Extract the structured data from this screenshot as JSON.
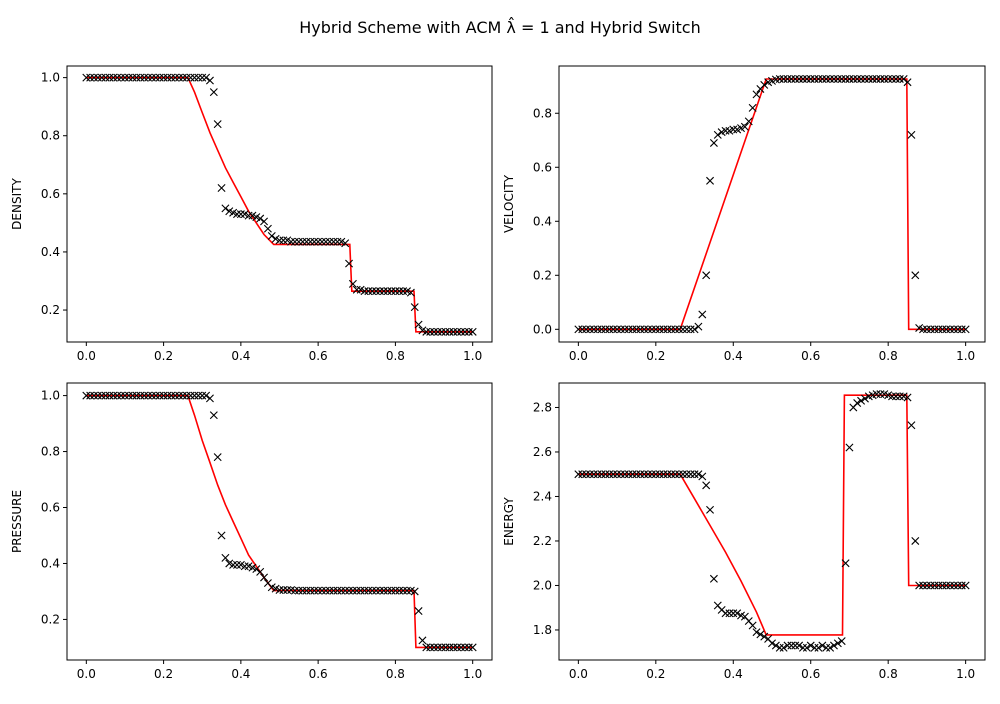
{
  "figure": {
    "title": "Hybrid Scheme with ACM λ̂ = 1 and Hybrid Switch"
  },
  "chart_data": [
    {
      "type": "line",
      "title": "",
      "xlabel": "",
      "ylabel": "DENSITY",
      "xlim": [
        -0.05,
        1.05
      ],
      "ylim": [
        0.09,
        1.04
      ],
      "xticks": [
        "0.0",
        "0.2",
        "0.4",
        "0.6",
        "0.8",
        "1.0"
      ],
      "yticks": [
        "0.2",
        "0.4",
        "0.6",
        "0.8",
        "1.0"
      ],
      "grid": false,
      "exact": {
        "name": "",
        "color": "#ff0000",
        "x": [
          0,
          0.263,
          0.28,
          0.3,
          0.32,
          0.34,
          0.36,
          0.38,
          0.4,
          0.42,
          0.44,
          0.46,
          0.485,
          0.55,
          0.6,
          0.65,
          0.682,
          0.687,
          0.75,
          0.8,
          0.848,
          0.853,
          0.9,
          1.0
        ],
        "y": [
          1.0,
          1.0,
          0.95,
          0.88,
          0.81,
          0.75,
          0.69,
          0.64,
          0.59,
          0.54,
          0.5,
          0.46,
          0.426,
          0.426,
          0.426,
          0.426,
          0.426,
          0.265,
          0.265,
          0.265,
          0.265,
          0.125,
          0.125,
          0.125
        ]
      },
      "numerical": {
        "name": "",
        "color": "#000000",
        "marker": "x",
        "x": [
          0.0,
          0.01,
          0.02,
          0.03,
          0.04,
          0.05,
          0.06,
          0.07,
          0.08,
          0.09,
          0.1,
          0.11,
          0.12,
          0.13,
          0.14,
          0.15,
          0.16,
          0.17,
          0.18,
          0.19,
          0.2,
          0.21,
          0.22,
          0.23,
          0.24,
          0.25,
          0.26,
          0.27,
          0.28,
          0.29,
          0.3,
          0.31,
          0.32,
          0.33,
          0.34,
          0.35,
          0.36,
          0.37,
          0.38,
          0.39,
          0.4,
          0.41,
          0.42,
          0.43,
          0.44,
          0.45,
          0.46,
          0.47,
          0.48,
          0.49,
          0.5,
          0.51,
          0.52,
          0.53,
          0.54,
          0.55,
          0.56,
          0.57,
          0.58,
          0.59,
          0.6,
          0.61,
          0.62,
          0.63,
          0.64,
          0.65,
          0.66,
          0.67,
          0.68,
          0.69,
          0.7,
          0.71,
          0.72,
          0.73,
          0.74,
          0.75,
          0.76,
          0.77,
          0.78,
          0.79,
          0.8,
          0.81,
          0.82,
          0.83,
          0.84,
          0.85,
          0.86,
          0.87,
          0.88,
          0.89,
          0.9,
          0.91,
          0.92,
          0.93,
          0.94,
          0.95,
          0.96,
          0.97,
          0.98,
          0.99,
          1.0
        ],
        "y": [
          1.0,
          1.0,
          1.0,
          1.0,
          1.0,
          1.0,
          1.0,
          1.0,
          1.0,
          1.0,
          1.0,
          1.0,
          1.0,
          1.0,
          1.0,
          1.0,
          1.0,
          1.0,
          1.0,
          1.0,
          1.0,
          1.0,
          1.0,
          1.0,
          1.0,
          1.0,
          1.0,
          1.0,
          1.0,
          1.0,
          1.0,
          1.0,
          0.99,
          0.95,
          0.84,
          0.62,
          0.55,
          0.54,
          0.535,
          0.53,
          0.53,
          0.53,
          0.525,
          0.525,
          0.52,
          0.515,
          0.505,
          0.48,
          0.455,
          0.445,
          0.44,
          0.44,
          0.44,
          0.435,
          0.435,
          0.435,
          0.435,
          0.435,
          0.435,
          0.435,
          0.435,
          0.435,
          0.435,
          0.435,
          0.435,
          0.435,
          0.435,
          0.43,
          0.36,
          0.29,
          0.27,
          0.27,
          0.265,
          0.265,
          0.265,
          0.265,
          0.265,
          0.265,
          0.265,
          0.265,
          0.265,
          0.265,
          0.265,
          0.265,
          0.26,
          0.21,
          0.15,
          0.13,
          0.125,
          0.125,
          0.125,
          0.125,
          0.125,
          0.125,
          0.125,
          0.125,
          0.125,
          0.125,
          0.125,
          0.125,
          0.125
        ]
      }
    },
    {
      "type": "line",
      "title": "",
      "xlabel": "",
      "ylabel": "VELOCITY",
      "xlim": [
        -0.05,
        1.05
      ],
      "ylim": [
        -0.047,
        0.975
      ],
      "xticks": [
        "0.0",
        "0.2",
        "0.4",
        "0.6",
        "0.8",
        "1.0"
      ],
      "yticks": [
        "0.0",
        "0.2",
        "0.4",
        "0.6",
        "0.8"
      ],
      "grid": false,
      "exact": {
        "name": "",
        "color": "#ff0000",
        "x": [
          0,
          0.263,
          0.485,
          0.5,
          0.848,
          0.853,
          0.9,
          1.0
        ],
        "y": [
          0,
          0,
          0.927,
          0.927,
          0.927,
          0,
          0,
          0
        ]
      },
      "numerical": {
        "name": "",
        "color": "#000000",
        "marker": "x",
        "x": [
          0.0,
          0.01,
          0.02,
          0.03,
          0.04,
          0.05,
          0.06,
          0.07,
          0.08,
          0.09,
          0.1,
          0.11,
          0.12,
          0.13,
          0.14,
          0.15,
          0.16,
          0.17,
          0.18,
          0.19,
          0.2,
          0.21,
          0.22,
          0.23,
          0.24,
          0.25,
          0.26,
          0.27,
          0.28,
          0.29,
          0.3,
          0.31,
          0.32,
          0.33,
          0.34,
          0.35,
          0.36,
          0.37,
          0.38,
          0.39,
          0.4,
          0.41,
          0.42,
          0.43,
          0.44,
          0.45,
          0.46,
          0.47,
          0.48,
          0.49,
          0.5,
          0.51,
          0.52,
          0.53,
          0.54,
          0.55,
          0.56,
          0.57,
          0.58,
          0.59,
          0.6,
          0.61,
          0.62,
          0.63,
          0.64,
          0.65,
          0.66,
          0.67,
          0.68,
          0.69,
          0.7,
          0.71,
          0.72,
          0.73,
          0.74,
          0.75,
          0.76,
          0.77,
          0.78,
          0.79,
          0.8,
          0.81,
          0.82,
          0.83,
          0.84,
          0.85,
          0.86,
          0.87,
          0.88,
          0.89,
          0.9,
          0.91,
          0.92,
          0.93,
          0.94,
          0.95,
          0.96,
          0.97,
          0.98,
          0.99,
          1.0
        ],
        "y": [
          0,
          0,
          0,
          0,
          0,
          0,
          0,
          0,
          0,
          0,
          0,
          0,
          0,
          0,
          0,
          0,
          0,
          0,
          0,
          0,
          0,
          0,
          0,
          0,
          0,
          0,
          0,
          0,
          0,
          0,
          0,
          0.01,
          0.055,
          0.2,
          0.55,
          0.69,
          0.72,
          0.73,
          0.735,
          0.735,
          0.74,
          0.74,
          0.745,
          0.75,
          0.77,
          0.82,
          0.87,
          0.89,
          0.905,
          0.915,
          0.92,
          0.925,
          0.927,
          0.927,
          0.927,
          0.927,
          0.927,
          0.927,
          0.927,
          0.927,
          0.927,
          0.927,
          0.927,
          0.927,
          0.927,
          0.927,
          0.927,
          0.927,
          0.927,
          0.927,
          0.927,
          0.927,
          0.927,
          0.927,
          0.927,
          0.927,
          0.927,
          0.927,
          0.927,
          0.927,
          0.927,
          0.927,
          0.927,
          0.927,
          0.927,
          0.915,
          0.72,
          0.2,
          0.005,
          0,
          0,
          0,
          0,
          0,
          0,
          0,
          0,
          0,
          0,
          0,
          0
        ]
      }
    },
    {
      "type": "line",
      "title": "",
      "xlabel": "",
      "ylabel": "PRESSURE",
      "xlim": [
        -0.05,
        1.05
      ],
      "ylim": [
        0.055,
        1.045
      ],
      "xticks": [
        "0.0",
        "0.2",
        "0.4",
        "0.6",
        "0.8",
        "1.0"
      ],
      "yticks": [
        "0.2",
        "0.4",
        "0.6",
        "0.8",
        "1.0"
      ],
      "grid": false,
      "exact": {
        "name": "",
        "color": "#ff0000",
        "x": [
          0,
          0.263,
          0.28,
          0.3,
          0.32,
          0.34,
          0.36,
          0.38,
          0.4,
          0.42,
          0.44,
          0.46,
          0.485,
          0.55,
          0.6,
          0.7,
          0.8,
          0.848,
          0.853,
          0.9,
          1.0
        ],
        "y": [
          1.0,
          1.0,
          0.93,
          0.84,
          0.76,
          0.68,
          0.61,
          0.55,
          0.49,
          0.43,
          0.39,
          0.35,
          0.303,
          0.303,
          0.303,
          0.303,
          0.303,
          0.303,
          0.1,
          0.1,
          0.1
        ]
      },
      "numerical": {
        "name": "",
        "color": "#000000",
        "marker": "x",
        "x": [
          0.0,
          0.01,
          0.02,
          0.03,
          0.04,
          0.05,
          0.06,
          0.07,
          0.08,
          0.09,
          0.1,
          0.11,
          0.12,
          0.13,
          0.14,
          0.15,
          0.16,
          0.17,
          0.18,
          0.19,
          0.2,
          0.21,
          0.22,
          0.23,
          0.24,
          0.25,
          0.26,
          0.27,
          0.28,
          0.29,
          0.3,
          0.31,
          0.32,
          0.33,
          0.34,
          0.35,
          0.36,
          0.37,
          0.38,
          0.39,
          0.4,
          0.41,
          0.42,
          0.43,
          0.44,
          0.45,
          0.46,
          0.47,
          0.48,
          0.49,
          0.5,
          0.51,
          0.52,
          0.53,
          0.54,
          0.55,
          0.56,
          0.57,
          0.58,
          0.59,
          0.6,
          0.61,
          0.62,
          0.63,
          0.64,
          0.65,
          0.66,
          0.67,
          0.68,
          0.69,
          0.7,
          0.71,
          0.72,
          0.73,
          0.74,
          0.75,
          0.76,
          0.77,
          0.78,
          0.79,
          0.8,
          0.81,
          0.82,
          0.83,
          0.84,
          0.85,
          0.86,
          0.87,
          0.88,
          0.89,
          0.9,
          0.91,
          0.92,
          0.93,
          0.94,
          0.95,
          0.96,
          0.97,
          0.98,
          0.99,
          1.0
        ],
        "y": [
          1.0,
          1.0,
          1.0,
          1.0,
          1.0,
          1.0,
          1.0,
          1.0,
          1.0,
          1.0,
          1.0,
          1.0,
          1.0,
          1.0,
          1.0,
          1.0,
          1.0,
          1.0,
          1.0,
          1.0,
          1.0,
          1.0,
          1.0,
          1.0,
          1.0,
          1.0,
          1.0,
          1.0,
          1.0,
          1.0,
          1.0,
          1.0,
          0.99,
          0.93,
          0.78,
          0.5,
          0.42,
          0.4,
          0.395,
          0.395,
          0.395,
          0.39,
          0.39,
          0.385,
          0.38,
          0.37,
          0.35,
          0.33,
          0.315,
          0.31,
          0.305,
          0.305,
          0.305,
          0.305,
          0.303,
          0.303,
          0.303,
          0.303,
          0.303,
          0.303,
          0.303,
          0.303,
          0.303,
          0.303,
          0.303,
          0.303,
          0.303,
          0.303,
          0.303,
          0.303,
          0.303,
          0.303,
          0.303,
          0.303,
          0.303,
          0.303,
          0.303,
          0.303,
          0.303,
          0.303,
          0.303,
          0.303,
          0.303,
          0.303,
          0.303,
          0.3,
          0.23,
          0.125,
          0.1,
          0.1,
          0.1,
          0.1,
          0.1,
          0.1,
          0.1,
          0.1,
          0.1,
          0.1,
          0.1,
          0.1,
          0.1
        ]
      }
    },
    {
      "type": "line",
      "title": "",
      "xlabel": "",
      "ylabel": "ENERGY",
      "xlim": [
        -0.05,
        1.05
      ],
      "ylim": [
        1.665,
        2.91
      ],
      "xticks": [
        "0.0",
        "0.2",
        "0.4",
        "0.6",
        "0.8",
        "1.0"
      ],
      "yticks": [
        "1.8",
        "2.0",
        "2.2",
        "2.4",
        "2.6",
        "2.8"
      ],
      "grid": false,
      "exact": {
        "name": "",
        "color": "#ff0000",
        "x": [
          0,
          0.263,
          0.3,
          0.34,
          0.38,
          0.42,
          0.46,
          0.485,
          0.55,
          0.6,
          0.65,
          0.682,
          0.687,
          0.75,
          0.8,
          0.848,
          0.853,
          0.9,
          1.0
        ],
        "y": [
          2.5,
          2.5,
          2.39,
          2.27,
          2.15,
          2.02,
          1.88,
          1.778,
          1.778,
          1.778,
          1.778,
          1.778,
          2.855,
          2.855,
          2.855,
          2.855,
          2.0,
          2.0,
          2.0
        ]
      },
      "numerical": {
        "name": "",
        "color": "#000000",
        "marker": "x",
        "x": [
          0.0,
          0.01,
          0.02,
          0.03,
          0.04,
          0.05,
          0.06,
          0.07,
          0.08,
          0.09,
          0.1,
          0.11,
          0.12,
          0.13,
          0.14,
          0.15,
          0.16,
          0.17,
          0.18,
          0.19,
          0.2,
          0.21,
          0.22,
          0.23,
          0.24,
          0.25,
          0.26,
          0.27,
          0.28,
          0.29,
          0.3,
          0.31,
          0.32,
          0.33,
          0.34,
          0.35,
          0.36,
          0.37,
          0.38,
          0.39,
          0.4,
          0.41,
          0.42,
          0.43,
          0.44,
          0.45,
          0.46,
          0.47,
          0.48,
          0.49,
          0.5,
          0.51,
          0.52,
          0.53,
          0.54,
          0.55,
          0.56,
          0.57,
          0.58,
          0.59,
          0.6,
          0.61,
          0.62,
          0.63,
          0.64,
          0.65,
          0.66,
          0.67,
          0.68,
          0.69,
          0.7,
          0.71,
          0.72,
          0.73,
          0.74,
          0.75,
          0.76,
          0.77,
          0.78,
          0.79,
          0.8,
          0.81,
          0.82,
          0.83,
          0.84,
          0.85,
          0.86,
          0.87,
          0.88,
          0.89,
          0.9,
          0.91,
          0.92,
          0.93,
          0.94,
          0.95,
          0.96,
          0.97,
          0.98,
          0.99,
          1.0
        ],
        "y": [
          2.5,
          2.5,
          2.5,
          2.5,
          2.5,
          2.5,
          2.5,
          2.5,
          2.5,
          2.5,
          2.5,
          2.5,
          2.5,
          2.5,
          2.5,
          2.5,
          2.5,
          2.5,
          2.5,
          2.5,
          2.5,
          2.5,
          2.5,
          2.5,
          2.5,
          2.5,
          2.5,
          2.5,
          2.5,
          2.5,
          2.5,
          2.5,
          2.49,
          2.45,
          2.34,
          2.03,
          1.91,
          1.89,
          1.875,
          1.875,
          1.875,
          1.875,
          1.865,
          1.86,
          1.84,
          1.82,
          1.79,
          1.78,
          1.77,
          1.76,
          1.74,
          1.73,
          1.72,
          1.72,
          1.73,
          1.73,
          1.73,
          1.73,
          1.72,
          1.72,
          1.73,
          1.72,
          1.72,
          1.73,
          1.72,
          1.72,
          1.73,
          1.74,
          1.75,
          2.1,
          2.62,
          2.8,
          2.82,
          2.83,
          2.84,
          2.85,
          2.855,
          2.86,
          2.86,
          2.86,
          2.855,
          2.85,
          2.85,
          2.85,
          2.85,
          2.845,
          2.72,
          2.2,
          2.0,
          2.0,
          2.0,
          2.0,
          2.0,
          2.0,
          2.0,
          2.0,
          2.0,
          2.0,
          2.0,
          2.0,
          2.0
        ]
      }
    }
  ]
}
